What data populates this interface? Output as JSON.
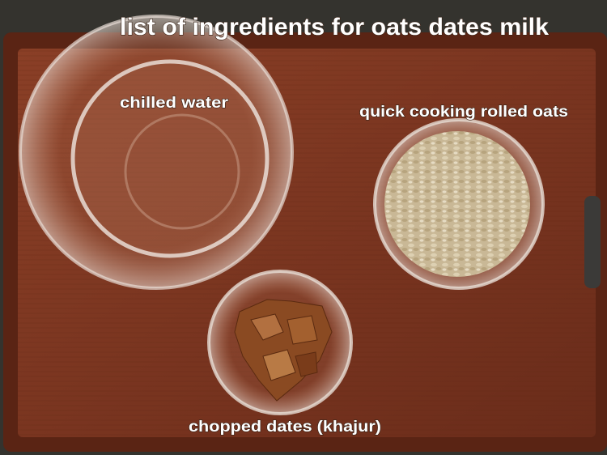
{
  "title": "list of ingredients for oats dates milk",
  "labels": [
    "chilled water",
    "quick cooking rolled oats",
    "chopped dates (khajur)"
  ]
}
